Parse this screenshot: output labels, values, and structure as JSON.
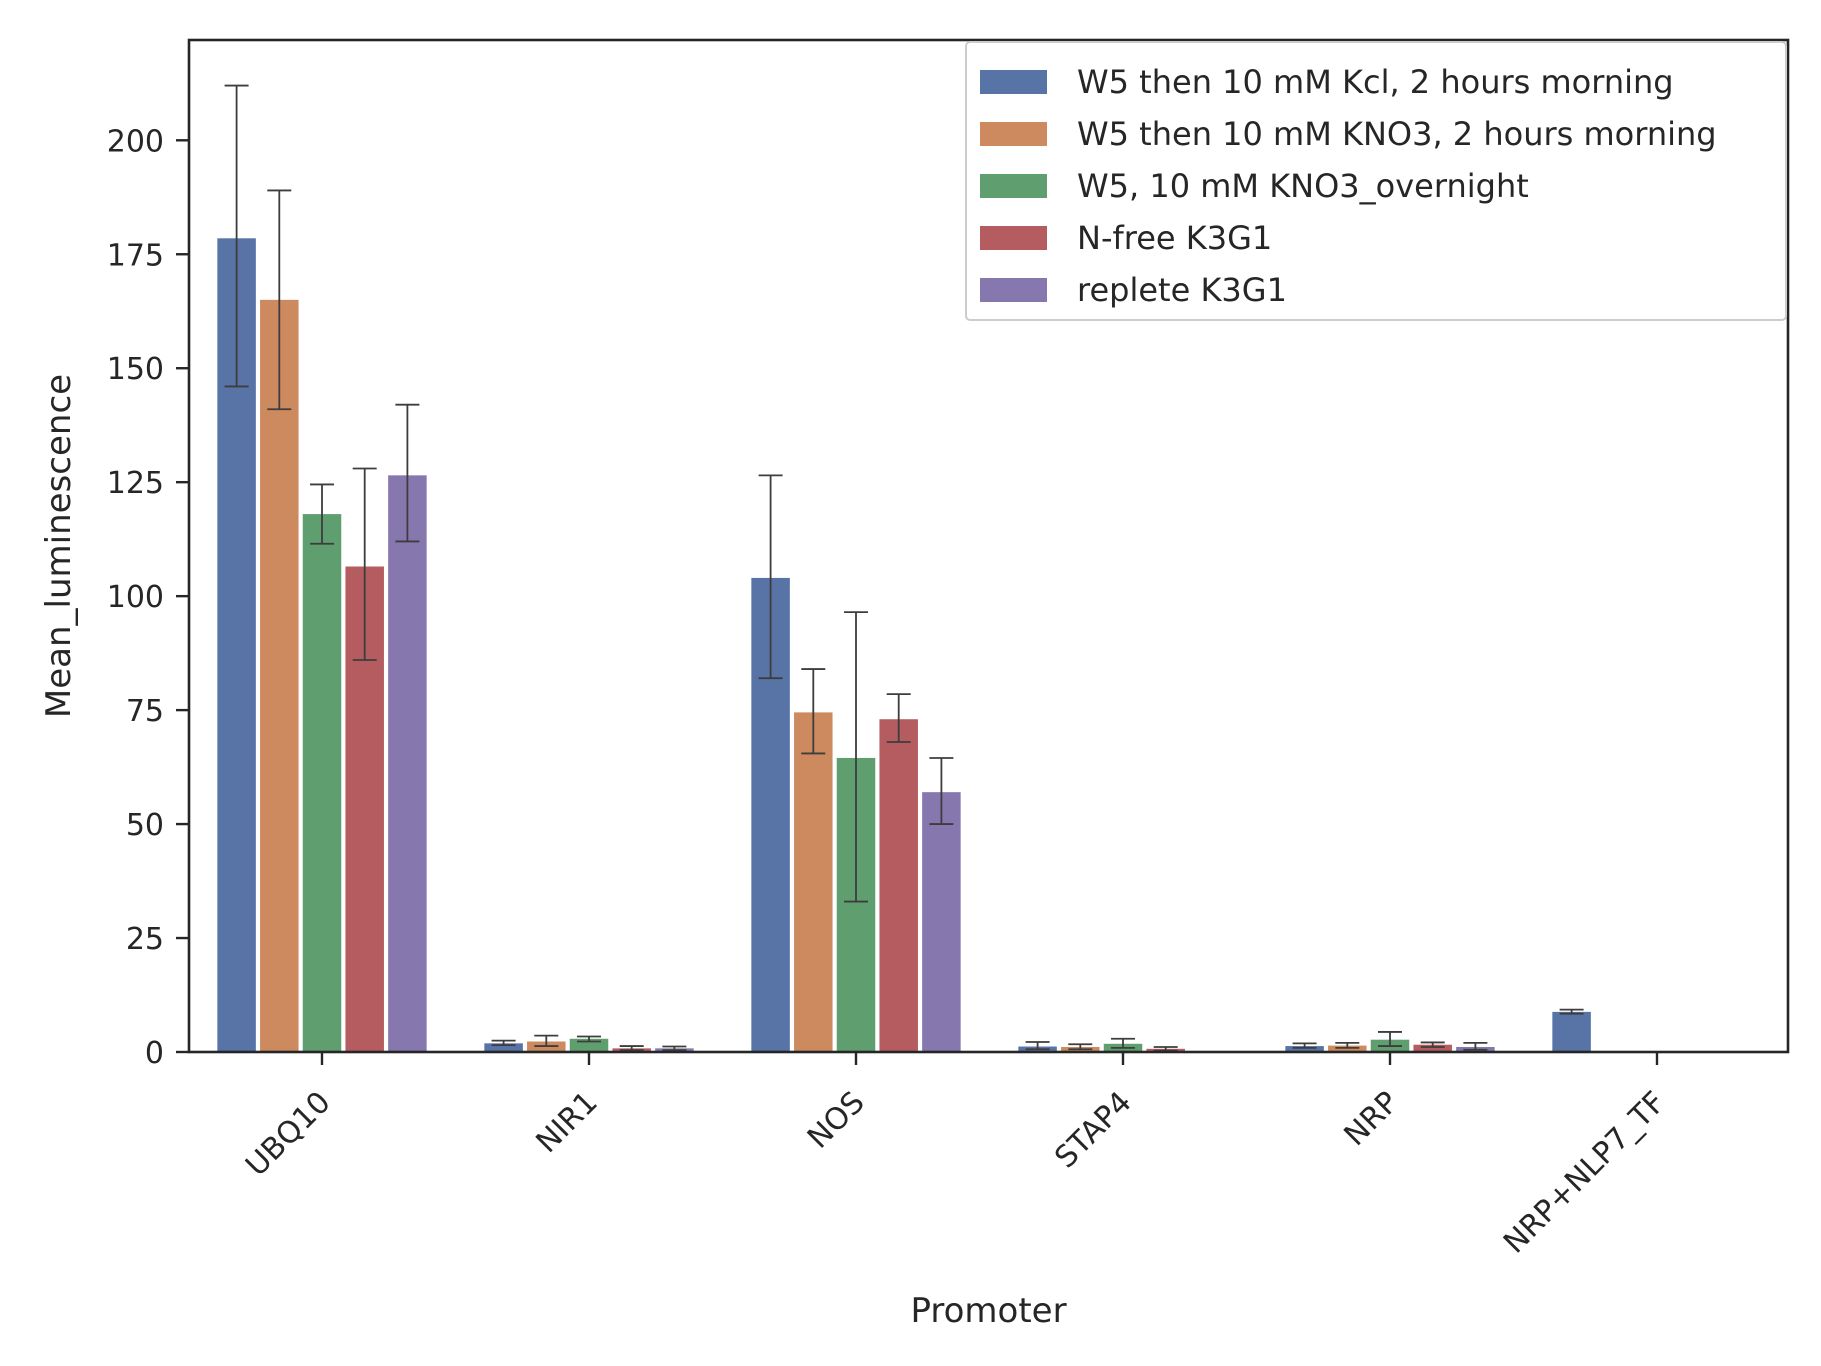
{
  "chart_data": {
    "type": "bar",
    "xlabel": "Promoter",
    "ylabel": "Mean_luminescence",
    "ylim": [
      0,
      222
    ],
    "yticks": [
      0,
      25,
      50,
      75,
      100,
      125,
      150,
      175,
      200
    ],
    "categories": [
      "UBQ10",
      "NIR1",
      "NOS",
      "STAP4",
      "NRP",
      "NRP+NLP7_TF"
    ],
    "legend_position": "top-right",
    "grid": false,
    "series": [
      {
        "name": "W5 then 10 mM Kcl, 2 hours morning",
        "color": "#5874a6",
        "values": [
          178.5,
          1.9,
          104,
          1.2,
          1.3,
          8.8
        ],
        "err_low": [
          146,
          1.5,
          82,
          0.6,
          0.9,
          8.4
        ],
        "err_high": [
          212,
          2.5,
          126.5,
          2.2,
          1.9,
          9.3
        ]
      },
      {
        "name": "W5 then 10 mM KNO3, 2 hours morning",
        "color": "#cd8a5f",
        "values": [
          165,
          2.3,
          74.5,
          1.1,
          1.4,
          null
        ],
        "err_low": [
          141,
          1.3,
          65.5,
          0.6,
          0.9,
          null
        ],
        "err_high": [
          189,
          3.6,
          84,
          1.7,
          2.0,
          null
        ]
      },
      {
        "name": "W5, 10 mM KNO3_overnight",
        "color": "#5f9e6e",
        "values": [
          118,
          2.9,
          64.5,
          1.8,
          2.7,
          null
        ],
        "err_low": [
          111.5,
          2.3,
          33,
          0.9,
          1.3,
          null
        ],
        "err_high": [
          124.5,
          3.4,
          96.5,
          2.9,
          4.4,
          null
        ]
      },
      {
        "name": "N-free K3G1",
        "color": "#b55c60",
        "values": [
          106.5,
          0.8,
          73,
          0.7,
          1.6,
          null
        ],
        "err_low": [
          86,
          0.4,
          68,
          0.3,
          1.1,
          null
        ],
        "err_high": [
          128,
          1.3,
          78.5,
          1.1,
          2.1,
          null
        ]
      },
      {
        "name": "replete K3G1",
        "color": "#8677ae",
        "values": [
          126.5,
          0.8,
          57,
          null,
          1.1,
          null
        ],
        "err_low": [
          112,
          0.4,
          50,
          null,
          0.5,
          null
        ],
        "err_high": [
          142,
          1.2,
          64.5,
          null,
          2.0,
          null
        ]
      }
    ]
  }
}
